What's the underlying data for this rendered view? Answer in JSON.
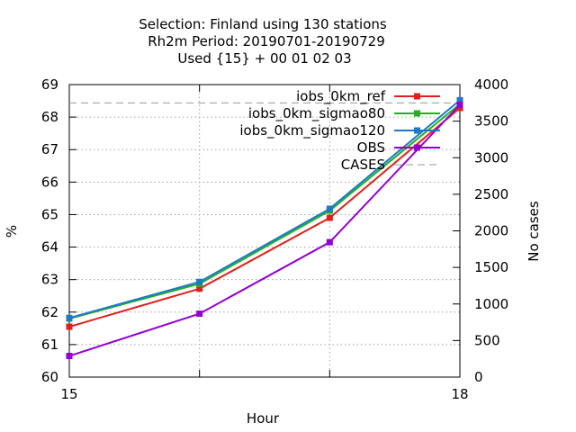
{
  "chart_data": {
    "type": "line",
    "title_lines": [
      "Selection: Finland using   130 stations",
      "Rh2m   Period: 20190701-20190729",
      "Used {15} + 00 01 02 03"
    ],
    "xlabel": "Hour",
    "ylabel": "%",
    "y2label": "No cases",
    "x": [
      15,
      16,
      17,
      18
    ],
    "x_tick_labels": [
      "15",
      "18"
    ],
    "xlim": [
      15,
      18
    ],
    "ylim": [
      60,
      69
    ],
    "y2lim": [
      0,
      4000
    ],
    "y_ticks": [
      60,
      61,
      62,
      63,
      64,
      65,
      66,
      67,
      68,
      69
    ],
    "y2_ticks": [
      0,
      500,
      1000,
      1500,
      2000,
      2500,
      3000,
      3500,
      4000
    ],
    "grid": true,
    "legend_position": "top-right",
    "series": [
      {
        "name": "iobs_0km_ref",
        "color": "#e0201b",
        "values": [
          61.55,
          62.72,
          64.9,
          68.28
        ]
      },
      {
        "name": "iobs_0km_sigmao80",
        "color": "#22b022",
        "values": [
          61.8,
          62.87,
          65.12,
          68.4
        ]
      },
      {
        "name": "iobs_0km_sigmao120",
        "color": "#1f78c8",
        "values": [
          61.82,
          62.93,
          65.18,
          68.52
        ]
      },
      {
        "name": "OBS",
        "color": "#9400d3",
        "values": [
          60.65,
          61.95,
          64.15,
          68.38
        ]
      }
    ],
    "cases_series": {
      "name": "CASES",
      "color": "#999999",
      "values": [
        3750,
        3750,
        3750,
        3750
      ]
    }
  }
}
